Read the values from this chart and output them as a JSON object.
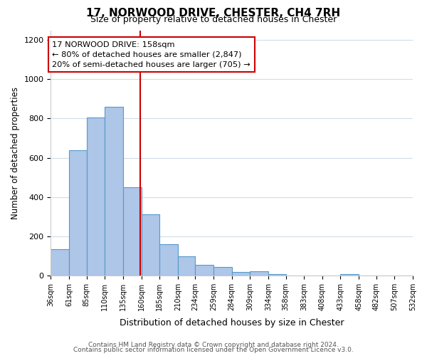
{
  "title": "17, NORWOOD DRIVE, CHESTER, CH4 7RH",
  "subtitle": "Size of property relative to detached houses in Chester",
  "xlabel": "Distribution of detached houses by size in Chester",
  "ylabel": "Number of detached properties",
  "bar_edges": [
    36,
    61,
    85,
    110,
    135,
    160,
    185,
    210,
    234,
    259,
    284,
    309,
    334,
    358,
    383,
    408,
    433,
    458,
    482,
    507,
    532
  ],
  "bar_heights": [
    135,
    640,
    805,
    860,
    450,
    310,
    160,
    97,
    55,
    43,
    18,
    20,
    5,
    0,
    0,
    0,
    5,
    0,
    0,
    0
  ],
  "bar_color": "#aec6e8",
  "bar_edgecolor": "#5599cc",
  "property_line_x": 158,
  "property_line_color": "#cc0000",
  "annotation_title": "17 NORWOOD DRIVE: 158sqm",
  "annotation_line1": "← 80% of detached houses are smaller (2,847)",
  "annotation_line2": "20% of semi-detached houses are larger (705) →",
  "annotation_box_edgecolor": "#cc0000",
  "ylim": [
    0,
    1250
  ],
  "yticks": [
    0,
    200,
    400,
    600,
    800,
    1000,
    1200
  ],
  "tick_labels": [
    "36sqm",
    "61sqm",
    "85sqm",
    "110sqm",
    "135sqm",
    "160sqm",
    "185sqm",
    "210sqm",
    "234sqm",
    "259sqm",
    "284sqm",
    "309sqm",
    "334sqm",
    "358sqm",
    "383sqm",
    "408sqm",
    "433sqm",
    "458sqm",
    "482sqm",
    "507sqm",
    "532sqm"
  ],
  "footer_line1": "Contains HM Land Registry data © Crown copyright and database right 2024.",
  "footer_line2": "Contains public sector information licensed under the Open Government Licence v3.0.",
  "background_color": "#ffffff",
  "grid_color": "#d0dde8"
}
